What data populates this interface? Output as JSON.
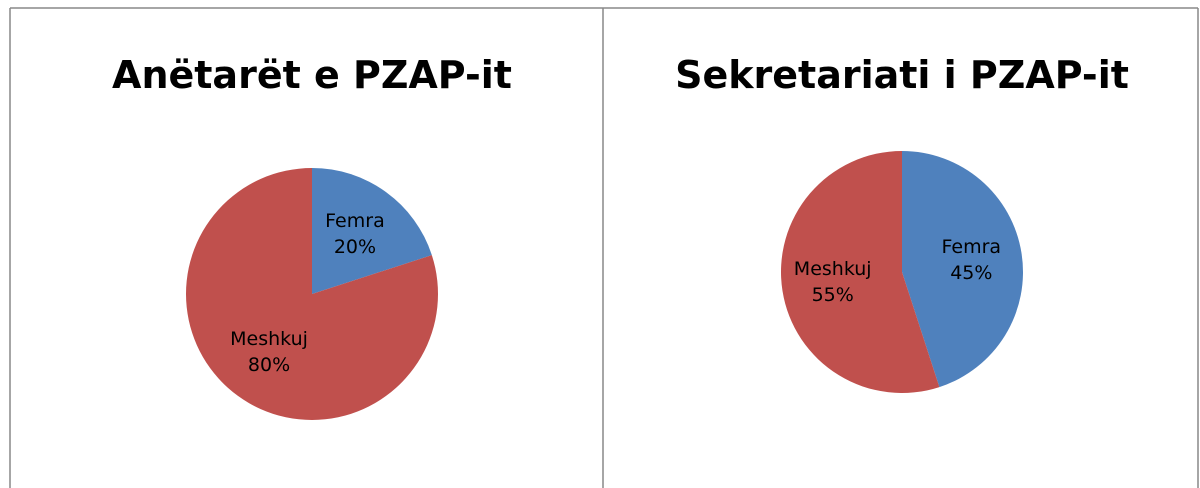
{
  "chart_data": [
    {
      "type": "pie",
      "title": "Anëtarët e PZAP-it",
      "categories": [
        "Femra",
        "Meshkuj"
      ],
      "values": [
        20,
        80
      ],
      "value_labels": [
        "20%",
        "80%"
      ],
      "colors": [
        "#4f81bd",
        "#c0504d"
      ]
    },
    {
      "type": "pie",
      "title": "Sekretariati i PZAP-it",
      "categories": [
        "Femra",
        "Meshkuj"
      ],
      "values": [
        45,
        55
      ],
      "value_labels": [
        "45%",
        "55%"
      ],
      "colors": [
        "#4f81bd",
        "#c0504d"
      ]
    }
  ]
}
